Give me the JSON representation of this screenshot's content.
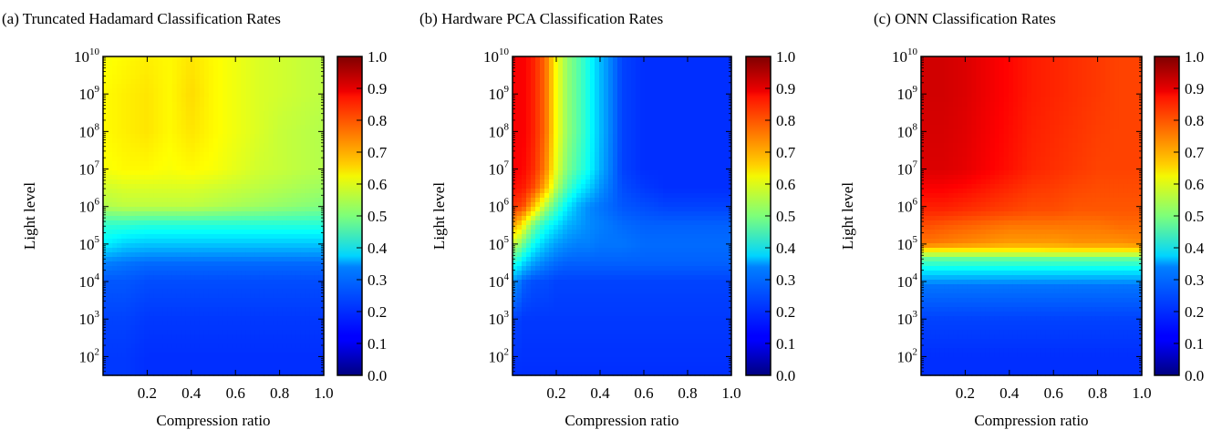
{
  "chart_data": [
    {
      "type": "heatmap",
      "title": "(a) Truncated Hadamard Classification Rates",
      "xlabel": "Compression ratio",
      "ylabel": "Light level",
      "xlim": [
        0.0,
        1.0
      ],
      "ylim_log10": [
        1.5,
        10
      ],
      "y_scale": "log",
      "x_ticks": [
        "0.2",
        "0.4",
        "0.6",
        "0.8",
        "1.0"
      ],
      "y_ticks": [
        "10",
        "10",
        "10",
        "10",
        "10",
        "10",
        "10",
        "10",
        "10"
      ],
      "y_tick_exponents": [
        "2",
        "3",
        "4",
        "5",
        "6",
        "7",
        "8",
        "9",
        "10"
      ],
      "colorbar": {
        "min": 0.0,
        "max": 1.0,
        "colormap": "jet",
        "ticks": [
          "0.0",
          "0.1",
          "0.2",
          "0.3",
          "0.4",
          "0.5",
          "0.6",
          "0.7",
          "0.8",
          "0.9",
          "1.0"
        ]
      },
      "grid": false,
      "x": [
        0.02,
        0.1,
        0.2,
        0.3,
        0.4,
        0.5,
        0.6,
        0.7,
        0.8,
        0.9,
        1.0
      ],
      "y_log10": [
        1.5,
        2,
        3,
        4,
        4.5,
        5,
        5.5,
        6,
        6.5,
        7,
        8,
        9,
        10
      ],
      "z": [
        [
          0.18,
          0.18,
          0.17,
          0.17,
          0.17,
          0.17,
          0.17,
          0.17,
          0.17,
          0.17,
          0.17
        ],
        [
          0.18,
          0.18,
          0.17,
          0.17,
          0.17,
          0.17,
          0.17,
          0.17,
          0.17,
          0.17,
          0.17
        ],
        [
          0.19,
          0.19,
          0.18,
          0.18,
          0.18,
          0.18,
          0.18,
          0.18,
          0.18,
          0.18,
          0.18
        ],
        [
          0.21,
          0.21,
          0.2,
          0.2,
          0.2,
          0.2,
          0.2,
          0.2,
          0.2,
          0.2,
          0.2
        ],
        [
          0.25,
          0.24,
          0.23,
          0.23,
          0.23,
          0.23,
          0.23,
          0.23,
          0.23,
          0.23,
          0.23
        ],
        [
          0.36,
          0.33,
          0.32,
          0.32,
          0.32,
          0.32,
          0.32,
          0.32,
          0.32,
          0.32,
          0.32
        ],
        [
          0.42,
          0.42,
          0.41,
          0.41,
          0.41,
          0.41,
          0.41,
          0.41,
          0.41,
          0.41,
          0.41
        ],
        [
          0.55,
          0.56,
          0.56,
          0.56,
          0.56,
          0.55,
          0.54,
          0.53,
          0.52,
          0.51,
          0.5
        ],
        [
          0.58,
          0.59,
          0.59,
          0.59,
          0.59,
          0.58,
          0.57,
          0.56,
          0.55,
          0.54,
          0.53
        ],
        [
          0.62,
          0.63,
          0.63,
          0.62,
          0.63,
          0.62,
          0.6,
          0.58,
          0.57,
          0.56,
          0.55
        ],
        [
          0.63,
          0.64,
          0.65,
          0.63,
          0.65,
          0.63,
          0.61,
          0.59,
          0.57,
          0.56,
          0.55
        ],
        [
          0.63,
          0.64,
          0.65,
          0.63,
          0.66,
          0.63,
          0.61,
          0.59,
          0.58,
          0.57,
          0.56
        ],
        [
          0.62,
          0.63,
          0.64,
          0.63,
          0.65,
          0.63,
          0.61,
          0.59,
          0.58,
          0.57,
          0.56
        ]
      ]
    },
    {
      "type": "heatmap",
      "title": "(b) Hardware PCA Classification Rates",
      "xlabel": "Compression ratio",
      "ylabel": "Light level",
      "xlim": [
        0.0,
        1.0
      ],
      "ylim_log10": [
        1.5,
        10
      ],
      "y_scale": "log",
      "x_ticks": [
        "0.2",
        "0.4",
        "0.6",
        "0.8",
        "1.0"
      ],
      "y_ticks": [
        "10",
        "10",
        "10",
        "10",
        "10",
        "10",
        "10",
        "10",
        "10"
      ],
      "y_tick_exponents": [
        "2",
        "3",
        "4",
        "5",
        "6",
        "7",
        "8",
        "9",
        "10"
      ],
      "colorbar": {
        "min": 0.0,
        "max": 1.0,
        "colormap": "jet",
        "ticks": [
          "0.0",
          "0.1",
          "0.2",
          "0.3",
          "0.4",
          "0.5",
          "0.6",
          "0.7",
          "0.8",
          "0.9",
          "1.0"
        ]
      },
      "grid": false,
      "x": [
        0.02,
        0.05,
        0.1,
        0.15,
        0.2,
        0.25,
        0.3,
        0.35,
        0.4,
        0.5,
        0.6,
        0.7,
        1.0
      ],
      "y_log10": [
        1.5,
        3,
        4,
        4.5,
        5,
        5.5,
        6,
        6.5,
        7,
        8,
        10
      ],
      "z": [
        [
          0.17,
          0.17,
          0.17,
          0.17,
          0.17,
          0.17,
          0.17,
          0.17,
          0.17,
          0.17,
          0.17,
          0.17,
          0.17
        ],
        [
          0.19,
          0.18,
          0.18,
          0.18,
          0.18,
          0.18,
          0.18,
          0.18,
          0.18,
          0.18,
          0.18,
          0.18,
          0.18
        ],
        [
          0.26,
          0.22,
          0.2,
          0.2,
          0.19,
          0.19,
          0.19,
          0.19,
          0.19,
          0.19,
          0.19,
          0.19,
          0.19
        ],
        [
          0.4,
          0.34,
          0.28,
          0.25,
          0.23,
          0.22,
          0.22,
          0.22,
          0.22,
          0.22,
          0.22,
          0.22,
          0.22
        ],
        [
          0.55,
          0.48,
          0.38,
          0.32,
          0.28,
          0.26,
          0.25,
          0.25,
          0.24,
          0.24,
          0.23,
          0.23,
          0.23
        ],
        [
          0.7,
          0.62,
          0.48,
          0.4,
          0.35,
          0.3,
          0.28,
          0.26,
          0.25,
          0.23,
          0.22,
          0.22,
          0.22
        ],
        [
          0.82,
          0.8,
          0.68,
          0.55,
          0.45,
          0.36,
          0.3,
          0.26,
          0.24,
          0.21,
          0.2,
          0.19,
          0.19
        ],
        [
          0.86,
          0.85,
          0.8,
          0.7,
          0.55,
          0.45,
          0.38,
          0.33,
          0.27,
          0.2,
          0.18,
          0.17,
          0.17
        ],
        [
          0.88,
          0.87,
          0.83,
          0.75,
          0.6,
          0.5,
          0.44,
          0.38,
          0.3,
          0.19,
          0.17,
          0.17,
          0.17
        ],
        [
          0.88,
          0.88,
          0.84,
          0.77,
          0.62,
          0.52,
          0.46,
          0.39,
          0.31,
          0.19,
          0.17,
          0.17,
          0.17
        ],
        [
          0.88,
          0.88,
          0.84,
          0.77,
          0.62,
          0.52,
          0.46,
          0.39,
          0.31,
          0.19,
          0.17,
          0.17,
          0.17
        ]
      ]
    },
    {
      "type": "heatmap",
      "title": "(c) ONN Classification Rates",
      "xlabel": "Compression ratio",
      "ylabel": "Light level",
      "xlim": [
        0.0,
        1.0
      ],
      "ylim_log10": [
        1.5,
        10
      ],
      "y_scale": "log",
      "x_ticks": [
        "0.2",
        "0.4",
        "0.6",
        "0.8",
        "1.0"
      ],
      "y_ticks": [
        "10",
        "10",
        "10",
        "10",
        "10",
        "10",
        "10",
        "10",
        "10"
      ],
      "y_tick_exponents": [
        "2",
        "3",
        "4",
        "5",
        "6",
        "7",
        "8",
        "9",
        "10"
      ],
      "colorbar": {
        "min": 0.0,
        "max": 1.0,
        "colormap": "jet",
        "ticks": [
          "0.0",
          "0.1",
          "0.2",
          "0.3",
          "0.4",
          "0.5",
          "0.6",
          "0.7",
          "0.8",
          "0.9",
          "1.0"
        ]
      },
      "grid": false,
      "x": [
        0.02,
        0.1,
        0.2,
        0.3,
        0.4,
        0.5,
        0.6,
        0.7,
        0.8,
        0.9,
        1.0
      ],
      "y_log10": [
        1.5,
        2,
        3,
        3.9,
        4.2,
        4.6,
        4.8,
        5.0,
        5.5,
        5.9,
        7,
        9,
        10
      ],
      "z": [
        [
          0.17,
          0.17,
          0.17,
          0.17,
          0.17,
          0.17,
          0.17,
          0.17,
          0.17,
          0.17,
          0.17
        ],
        [
          0.17,
          0.17,
          0.17,
          0.17,
          0.17,
          0.17,
          0.17,
          0.17,
          0.17,
          0.17,
          0.17
        ],
        [
          0.19,
          0.19,
          0.19,
          0.19,
          0.19,
          0.19,
          0.19,
          0.19,
          0.19,
          0.19,
          0.19
        ],
        [
          0.24,
          0.24,
          0.24,
          0.24,
          0.24,
          0.24,
          0.24,
          0.24,
          0.24,
          0.24,
          0.24
        ],
        [
          0.33,
          0.33,
          0.33,
          0.33,
          0.33,
          0.33,
          0.33,
          0.33,
          0.33,
          0.33,
          0.33
        ],
        [
          0.47,
          0.47,
          0.47,
          0.47,
          0.47,
          0.47,
          0.47,
          0.47,
          0.47,
          0.47,
          0.47
        ],
        [
          0.62,
          0.62,
          0.62,
          0.62,
          0.62,
          0.62,
          0.63,
          0.63,
          0.63,
          0.63,
          0.63
        ],
        [
          0.76,
          0.75,
          0.74,
          0.73,
          0.72,
          0.72,
          0.72,
          0.73,
          0.73,
          0.73,
          0.74
        ],
        [
          0.8,
          0.79,
          0.78,
          0.77,
          0.76,
          0.76,
          0.76,
          0.76,
          0.76,
          0.77,
          0.77
        ],
        [
          0.84,
          0.84,
          0.83,
          0.82,
          0.81,
          0.8,
          0.8,
          0.79,
          0.79,
          0.79,
          0.79
        ],
        [
          0.91,
          0.91,
          0.9,
          0.88,
          0.86,
          0.84,
          0.83,
          0.82,
          0.81,
          0.81,
          0.81
        ],
        [
          0.92,
          0.92,
          0.91,
          0.89,
          0.87,
          0.85,
          0.84,
          0.83,
          0.82,
          0.81,
          0.81
        ],
        [
          0.92,
          0.92,
          0.91,
          0.89,
          0.87,
          0.85,
          0.84,
          0.83,
          0.82,
          0.81,
          0.81
        ]
      ]
    }
  ]
}
